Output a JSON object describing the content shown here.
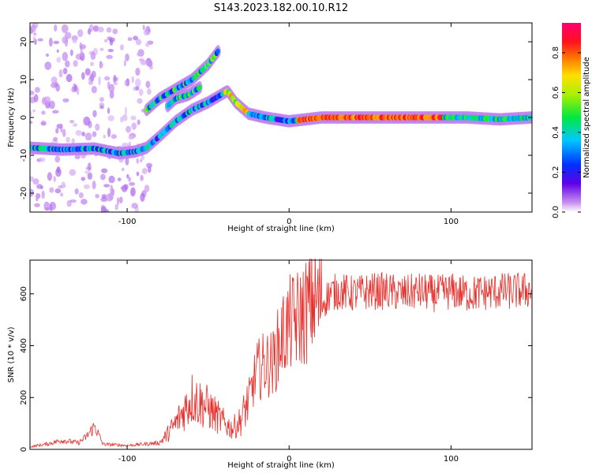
{
  "title": "S143.2023.182.00.10.R12",
  "colors": {
    "snr_line": "#e8302c",
    "background": "#ffffff"
  },
  "chart_data": [
    {
      "type": "heatmap",
      "xlabel": "Height of straight line (km)",
      "ylabel": "Frequency (Hz)",
      "xlim": [
        -160,
        150
      ],
      "ylim": [
        -25,
        25
      ],
      "x_ticks": [
        -100,
        0,
        100
      ],
      "y_ticks": [
        -20,
        -10,
        0,
        10,
        20
      ],
      "grid": false,
      "colorbar": {
        "label": "Normalized spectral amplitude",
        "range": [
          0,
          0.95
        ],
        "ticks": [
          0.0,
          0.2,
          0.4,
          0.6,
          0.8
        ]
      },
      "ridges": [
        {
          "name": "main-trace",
          "points": [
            [
              -160,
              -8
            ],
            [
              -140,
              -8.5
            ],
            [
              -120,
              -8.2
            ],
            [
              -105,
              -9.5
            ],
            [
              -95,
              -9
            ],
            [
              -88,
              -8
            ],
            [
              -80,
              -5
            ],
            [
              -70,
              -1
            ],
            [
              -60,
              2
            ],
            [
              -50,
              4
            ],
            [
              -38,
              7
            ],
            [
              -33,
              4
            ],
            [
              -25,
              1
            ],
            [
              -15,
              0
            ],
            [
              0,
              -1
            ],
            [
              20,
              0
            ],
            [
              50,
              0
            ],
            [
              80,
              0
            ],
            [
              110,
              0
            ],
            [
              130,
              -0.5
            ],
            [
              150,
              0
            ]
          ]
        },
        {
          "name": "upper-branch",
          "points": [
            [
              -88,
              2
            ],
            [
              -80,
              5
            ],
            [
              -70,
              7.5
            ],
            [
              -60,
              10
            ],
            [
              -50,
              14
            ],
            [
              -43,
              18
            ]
          ]
        },
        {
          "name": "mid-branch",
          "points": [
            [
              -75,
              3
            ],
            [
              -70,
              5
            ],
            [
              -62,
              6
            ],
            [
              -55,
              8
            ]
          ]
        }
      ]
    },
    {
      "type": "line",
      "xlabel": "Height of straight line (km)",
      "ylabel": "SNR (10 * v/v)",
      "xlim": [
        -160,
        150
      ],
      "ylim": [
        0,
        730
      ],
      "x_ticks": [
        -100,
        0,
        100
      ],
      "y_ticks": [
        0,
        200,
        400,
        600
      ],
      "grid": false,
      "envelope": [
        [
          -160,
          10
        ],
        [
          -150,
          20
        ],
        [
          -140,
          35
        ],
        [
          -130,
          25
        ],
        [
          -125,
          50
        ],
        [
          -120,
          90
        ],
        [
          -115,
          20
        ],
        [
          -100,
          15
        ],
        [
          -90,
          20
        ],
        [
          -80,
          25
        ],
        [
          -75,
          60
        ],
        [
          -70,
          100
        ],
        [
          -65,
          150
        ],
        [
          -60,
          200
        ],
        [
          -55,
          180
        ],
        [
          -50,
          160
        ],
        [
          -45,
          130
        ],
        [
          -40,
          100
        ],
        [
          -35,
          80
        ],
        [
          -30,
          110
        ],
        [
          -25,
          190
        ],
        [
          -20,
          300
        ],
        [
          -15,
          330
        ],
        [
          -10,
          330
        ],
        [
          -5,
          430
        ],
        [
          0,
          480
        ],
        [
          5,
          500
        ],
        [
          10,
          530
        ],
        [
          15,
          580
        ],
        [
          20,
          560
        ],
        [
          25,
          600
        ],
        [
          30,
          610
        ],
        [
          40,
          600
        ],
        [
          50,
          610
        ],
        [
          60,
          610
        ],
        [
          70,
          600
        ],
        [
          80,
          610
        ],
        [
          90,
          600
        ],
        [
          100,
          610
        ],
        [
          110,
          600
        ],
        [
          120,
          605
        ],
        [
          130,
          610
        ],
        [
          140,
          610
        ],
        [
          150,
          615
        ]
      ]
    }
  ]
}
